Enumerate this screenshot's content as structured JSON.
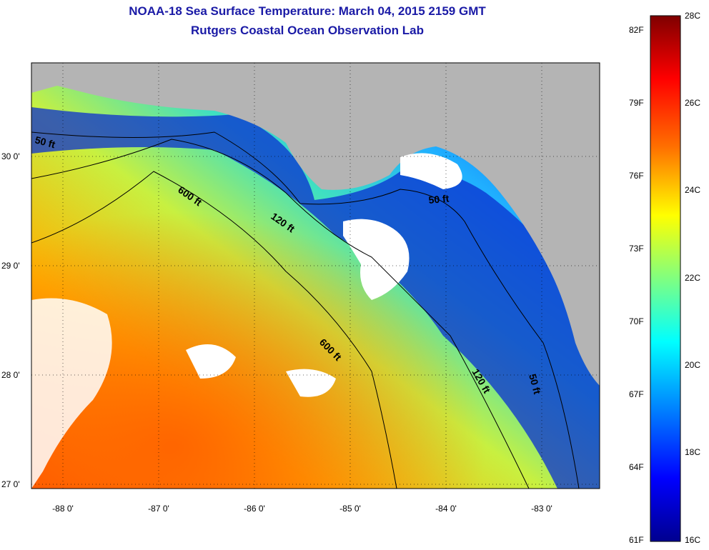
{
  "title": "NOAA-18 Sea Surface Temperature:  March 04, 2015 2159 GMT",
  "subtitle": "Rutgers Coastal Ocean Observation Lab",
  "x_ticks": [
    "-88 0'",
    "-87 0'",
    "-86 0'",
    "-85 0'",
    "-84 0'",
    "-83 0'"
  ],
  "y_ticks": [
    "30 0'",
    "29 0'",
    "28 0'",
    "27 0'"
  ],
  "contours": [
    "50 ft",
    "600 ft",
    "120 ft",
    "50 ft",
    "600 ft",
    "120 ft",
    "50 ft"
  ],
  "colorbar": {
    "fahrenheit": [
      "82F",
      "79F",
      "76F",
      "73F",
      "70F",
      "67F",
      "64F",
      "61F"
    ],
    "celsius": [
      "28C",
      "26C",
      "24C",
      "22C",
      "20C",
      "18C",
      "16C"
    ],
    "colors": [
      "#7f0000",
      "#ff0000",
      "#ff8000",
      "#ffff00",
      "#80ff80",
      "#00ffff",
      "#0080ff",
      "#0000ff",
      "#00008f"
    ]
  },
  "colors": {
    "land": "#b4b4b4",
    "cloud": "#ffffff",
    "title": "#1a1aa6"
  }
}
